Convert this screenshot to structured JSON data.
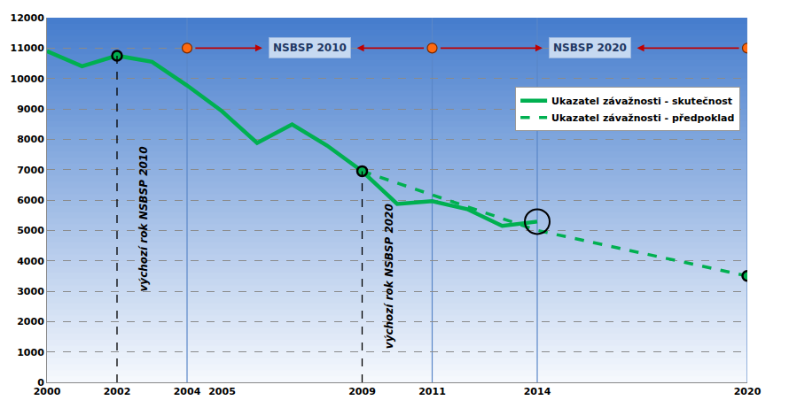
{
  "chart_data": {
    "type": "line",
    "xlim": [
      2000,
      2020
    ],
    "xticks": [
      2000,
      2002,
      2004,
      2005,
      2009,
      2011,
      2014,
      2020
    ],
    "ylim": [
      0,
      12000
    ],
    "yticks": [
      0,
      1000,
      2000,
      3000,
      4000,
      5000,
      6000,
      7000,
      8000,
      9000,
      10000,
      11000,
      12000
    ],
    "grid": true,
    "legend": "upper right",
    "series": [
      {
        "name": "Ukazatel závažnosti - skutečnost",
        "color": "#00b050",
        "line_style": "solid",
        "x": [
          2000,
          2001,
          2002,
          2003,
          2004,
          2005,
          2006,
          2007,
          2008,
          2009,
          2010,
          2011,
          2012,
          2013,
          2014
        ],
        "values": [
          10900,
          10400,
          10750,
          10550,
          9770,
          8920,
          7880,
          8490,
          7790,
          6950,
          5870,
          5960,
          5700,
          5150,
          5290
        ]
      },
      {
        "name": "Ukazatel závažnosti - předpoklad",
        "color": "#00b050",
        "line_style": "dashed",
        "x": [
          2009,
          2014,
          2020
        ],
        "values": [
          6950,
          5000,
          3500
        ]
      }
    ],
    "periods": [
      {
        "label": "NSBSP 2010",
        "start": 2004,
        "end": 2011,
        "level": 11000
      },
      {
        "label": "NSBSP 2020",
        "start": 2011,
        "end": 2020,
        "level": 11000
      }
    ],
    "baselines": [
      {
        "label": "výchozí rok NSBSP 2010",
        "x": 2002
      },
      {
        "label": "výchozí rok NSBSP 2020",
        "x": 2009
      }
    ]
  }
}
